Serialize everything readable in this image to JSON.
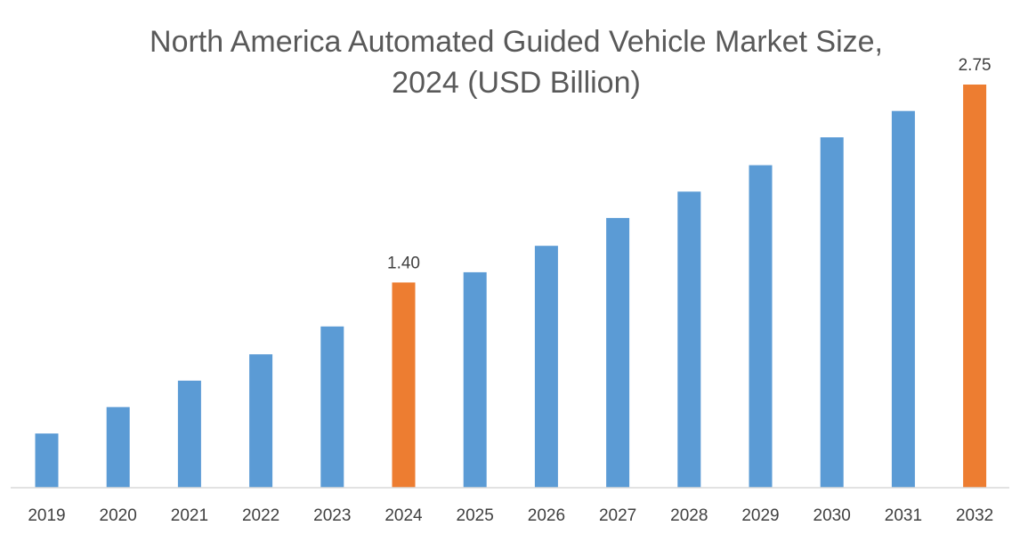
{
  "chart_data": {
    "type": "bar",
    "title_lines": [
      "North America Automated Guided Vehicle Market Size,",
      "2024 (USD Billion)"
    ],
    "xlabel": "",
    "ylabel": "",
    "categories": [
      "2019",
      "2020",
      "2021",
      "2022",
      "2023",
      "2024",
      "2025",
      "2026",
      "2027",
      "2028",
      "2029",
      "2030",
      "2031",
      "2032"
    ],
    "series": [
      {
        "name": "Market Size",
        "values": [
          0.37,
          0.55,
          0.73,
          0.91,
          1.1,
          1.4,
          1.47,
          1.65,
          1.84,
          2.02,
          2.2,
          2.39,
          2.57,
          2.75
        ]
      }
    ],
    "data_labels": [
      {
        "category": "2024",
        "text": "1.40"
      },
      {
        "category": "2032",
        "text": "2.75"
      }
    ],
    "highlighted_categories": [
      "2024",
      "2032"
    ],
    "ylim": [
      0,
      2.75
    ],
    "grid": false,
    "legend": "none",
    "colors": {
      "bar": "#5b9bd5",
      "highlight": "#ed7d31",
      "axis": "#d9d9d9",
      "title": "#595959",
      "label": "#404040"
    }
  }
}
